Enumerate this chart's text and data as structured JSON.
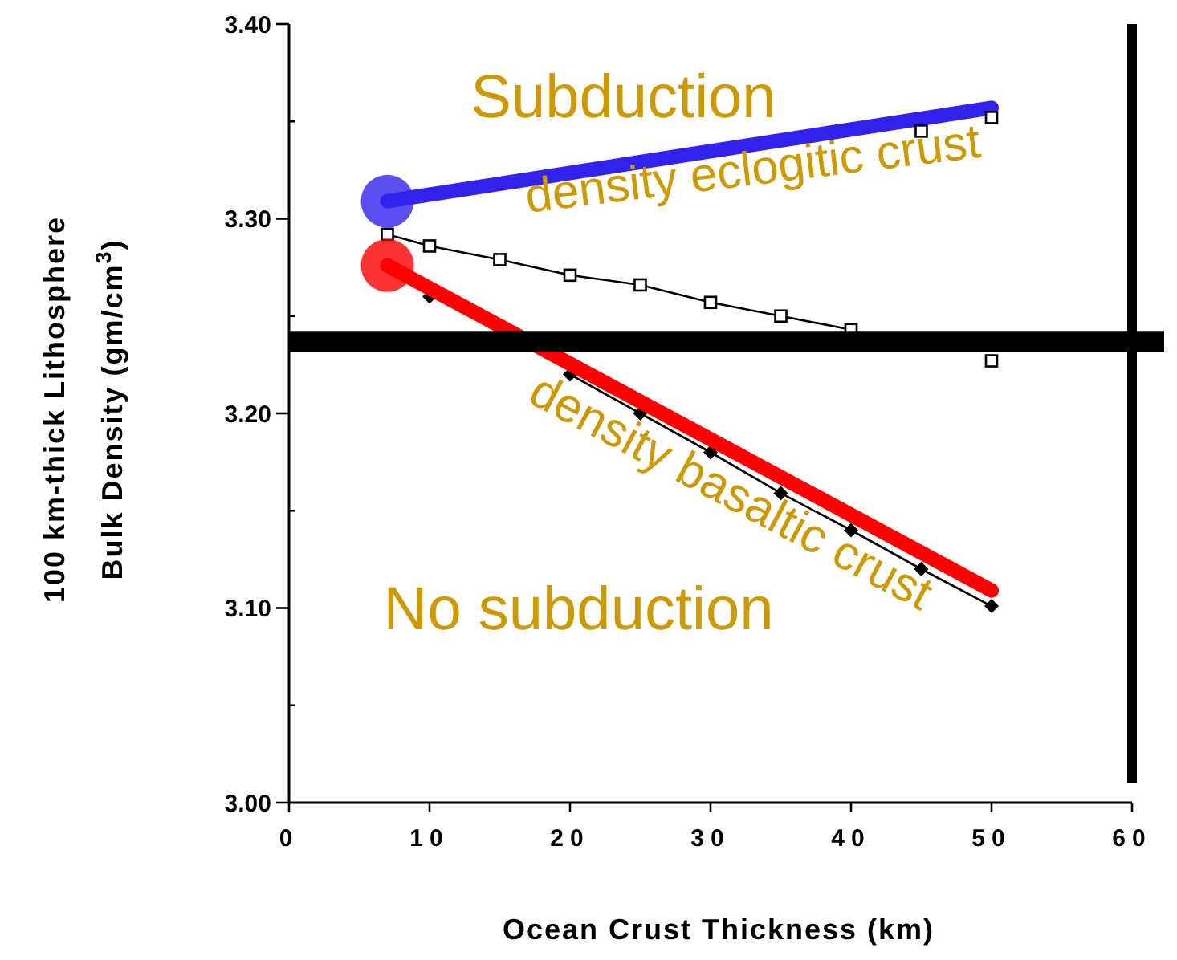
{
  "chart_data": {
    "type": "line",
    "xlabel": "Ocean Crust Thickness (km)",
    "ylabel": "100 km-thick Lithosphere\nBulk Density (gm/cm$^{3}$)",
    "xlim": [
      0,
      60
    ],
    "xticks": [
      0,
      10,
      20,
      30,
      40,
      50,
      60
    ],
    "ylim": [
      3.0,
      3.4
    ],
    "yticks": [
      {
        "value": 3.0,
        "label": "3.00"
      },
      {
        "value": 3.05,
        "label": null
      },
      {
        "value": 3.1,
        "label": "3.10"
      },
      {
        "value": 3.15,
        "label": null
      },
      {
        "value": 3.2,
        "label": "3.20"
      },
      {
        "value": 3.25,
        "label": null
      },
      {
        "value": 3.3,
        "label": "3.30"
      },
      {
        "value": 3.35,
        "label": null
      },
      {
        "value": 3.4,
        "label": "3.40"
      }
    ],
    "grid": false,
    "series": [
      {
        "color": "#000000",
        "marker": "square",
        "x": [
          7,
          10,
          15,
          20,
          25,
          30,
          35,
          40,
          45,
          50
        ],
        "values": [
          3.292,
          3.286,
          3.279,
          3.271,
          3.266,
          3.257,
          3.25,
          3.243,
          null,
          3.227
        ]
      },
      {
        "color": "#000000",
        "marker": "diamond",
        "x": [
          10,
          15,
          20,
          25,
          30,
          35,
          40,
          45,
          50
        ],
        "values": [
          3.26,
          null,
          3.22,
          3.2,
          3.18,
          3.159,
          3.14,
          3.12,
          3.101
        ]
      },
      {
        "type": "scatter",
        "color": "#000000",
        "marker": "square",
        "x": [
          45,
          50
        ],
        "values": [
          3.345,
          3.352
        ]
      },
      {
        "color": "#3322ee",
        "marker": "circle",
        "x": [
          7,
          50
        ],
        "values": [
          3.309,
          3.357
        ]
      },
      {
        "color": "#ff0000",
        "marker": "circle",
        "x": [
          7,
          50
        ],
        "values": [
          3.276,
          3.109
        ]
      }
    ],
    "ref_lines": [
      {
        "axis": "y",
        "value": 3.237,
        "color": "#000000"
      },
      {
        "axis": "x",
        "value": 60,
        "color": "#000000"
      }
    ],
    "annotations": [
      "Subduction",
      "density eclogitic crust",
      "density basaltic crust",
      "No subduction"
    ]
  }
}
